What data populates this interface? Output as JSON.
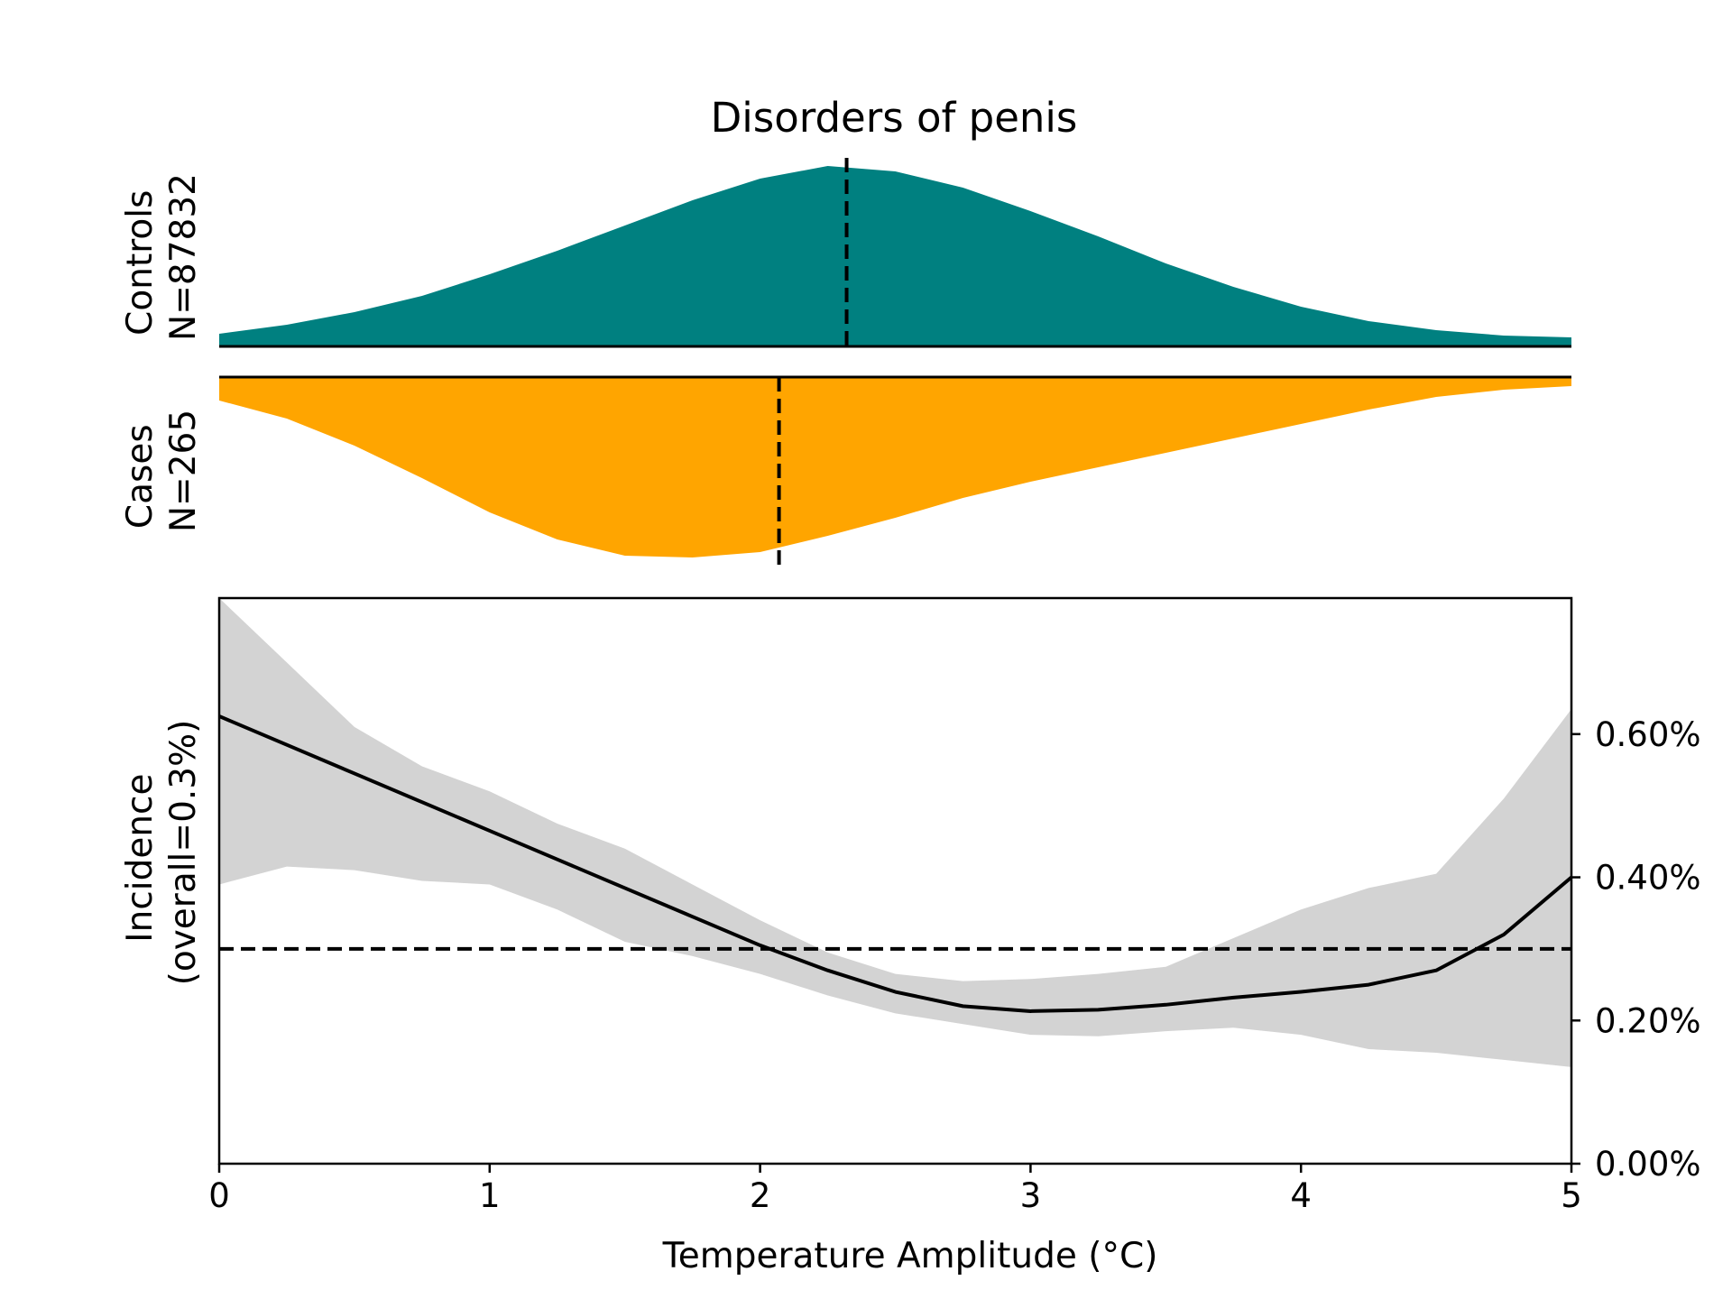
{
  "chart_data": {
    "type": "area",
    "title": "Disorders of penis",
    "x_range": [
      0,
      5
    ],
    "density": {
      "x": [
        0,
        0.25,
        0.5,
        0.75,
        1.0,
        1.25,
        1.5,
        1.75,
        2.0,
        2.25,
        2.5,
        2.75,
        3.0,
        3.25,
        3.5,
        3.75,
        4.0,
        4.25,
        4.5,
        4.75,
        5.0
      ],
      "controls": {
        "label_line1": "Controls",
        "label_line2": "N=87832",
        "color": "#008080",
        "values": [
          0.07,
          0.12,
          0.19,
          0.28,
          0.4,
          0.53,
          0.67,
          0.81,
          0.93,
          1.0,
          0.97,
          0.88,
          0.75,
          0.61,
          0.46,
          0.33,
          0.22,
          0.14,
          0.09,
          0.06,
          0.05
        ],
        "median": 2.32
      },
      "cases": {
        "label_line1": "Cases",
        "label_line2": "N=265",
        "color": "#FFA500",
        "values": [
          0.13,
          0.23,
          0.38,
          0.56,
          0.75,
          0.9,
          0.99,
          1.0,
          0.97,
          0.88,
          0.78,
          0.67,
          0.58,
          0.5,
          0.42,
          0.34,
          0.26,
          0.18,
          0.11,
          0.07,
          0.05
        ],
        "median": 2.07
      }
    },
    "incidence": {
      "ylabel_line1": "Incidence",
      "ylabel_line2": "(overall=0.3%)",
      "xlabel": "Temperature Amplitude (°C)",
      "ylim": [
        0,
        0.79
      ],
      "overall": 0.3,
      "x_ticks": [
        "0",
        "1",
        "2",
        "3",
        "4",
        "5"
      ],
      "y_ticks": [
        {
          "value": 0.0,
          "label": "0.00%"
        },
        {
          "value": 0.2,
          "label": "0.20%"
        },
        {
          "value": 0.4,
          "label": "0.40%"
        },
        {
          "value": 0.6,
          "label": "0.60%"
        }
      ],
      "line_color": "#000000",
      "band_color": "#d3d3d3",
      "x": [
        0,
        0.25,
        0.5,
        0.75,
        1.0,
        1.25,
        1.5,
        1.75,
        2.0,
        2.25,
        2.5,
        2.75,
        3.0,
        3.25,
        3.5,
        3.75,
        4.0,
        4.25,
        4.5,
        4.75,
        5.0
      ],
      "y": [
        0.625,
        0.585,
        0.545,
        0.505,
        0.465,
        0.425,
        0.385,
        0.345,
        0.305,
        0.27,
        0.24,
        0.22,
        0.213,
        0.215,
        0.222,
        0.232,
        0.24,
        0.25,
        0.27,
        0.32,
        0.4
      ],
      "lower": [
        0.39,
        0.415,
        0.41,
        0.395,
        0.39,
        0.355,
        0.31,
        0.29,
        0.265,
        0.235,
        0.21,
        0.195,
        0.18,
        0.178,
        0.185,
        0.19,
        0.18,
        0.16,
        0.155,
        0.145,
        0.135
      ],
      "upper": [
        0.81,
        0.7,
        0.61,
        0.555,
        0.52,
        0.475,
        0.44,
        0.39,
        0.34,
        0.295,
        0.265,
        0.255,
        0.258,
        0.265,
        0.275,
        0.315,
        0.355,
        0.385,
        0.405,
        0.51,
        0.635
      ]
    }
  }
}
